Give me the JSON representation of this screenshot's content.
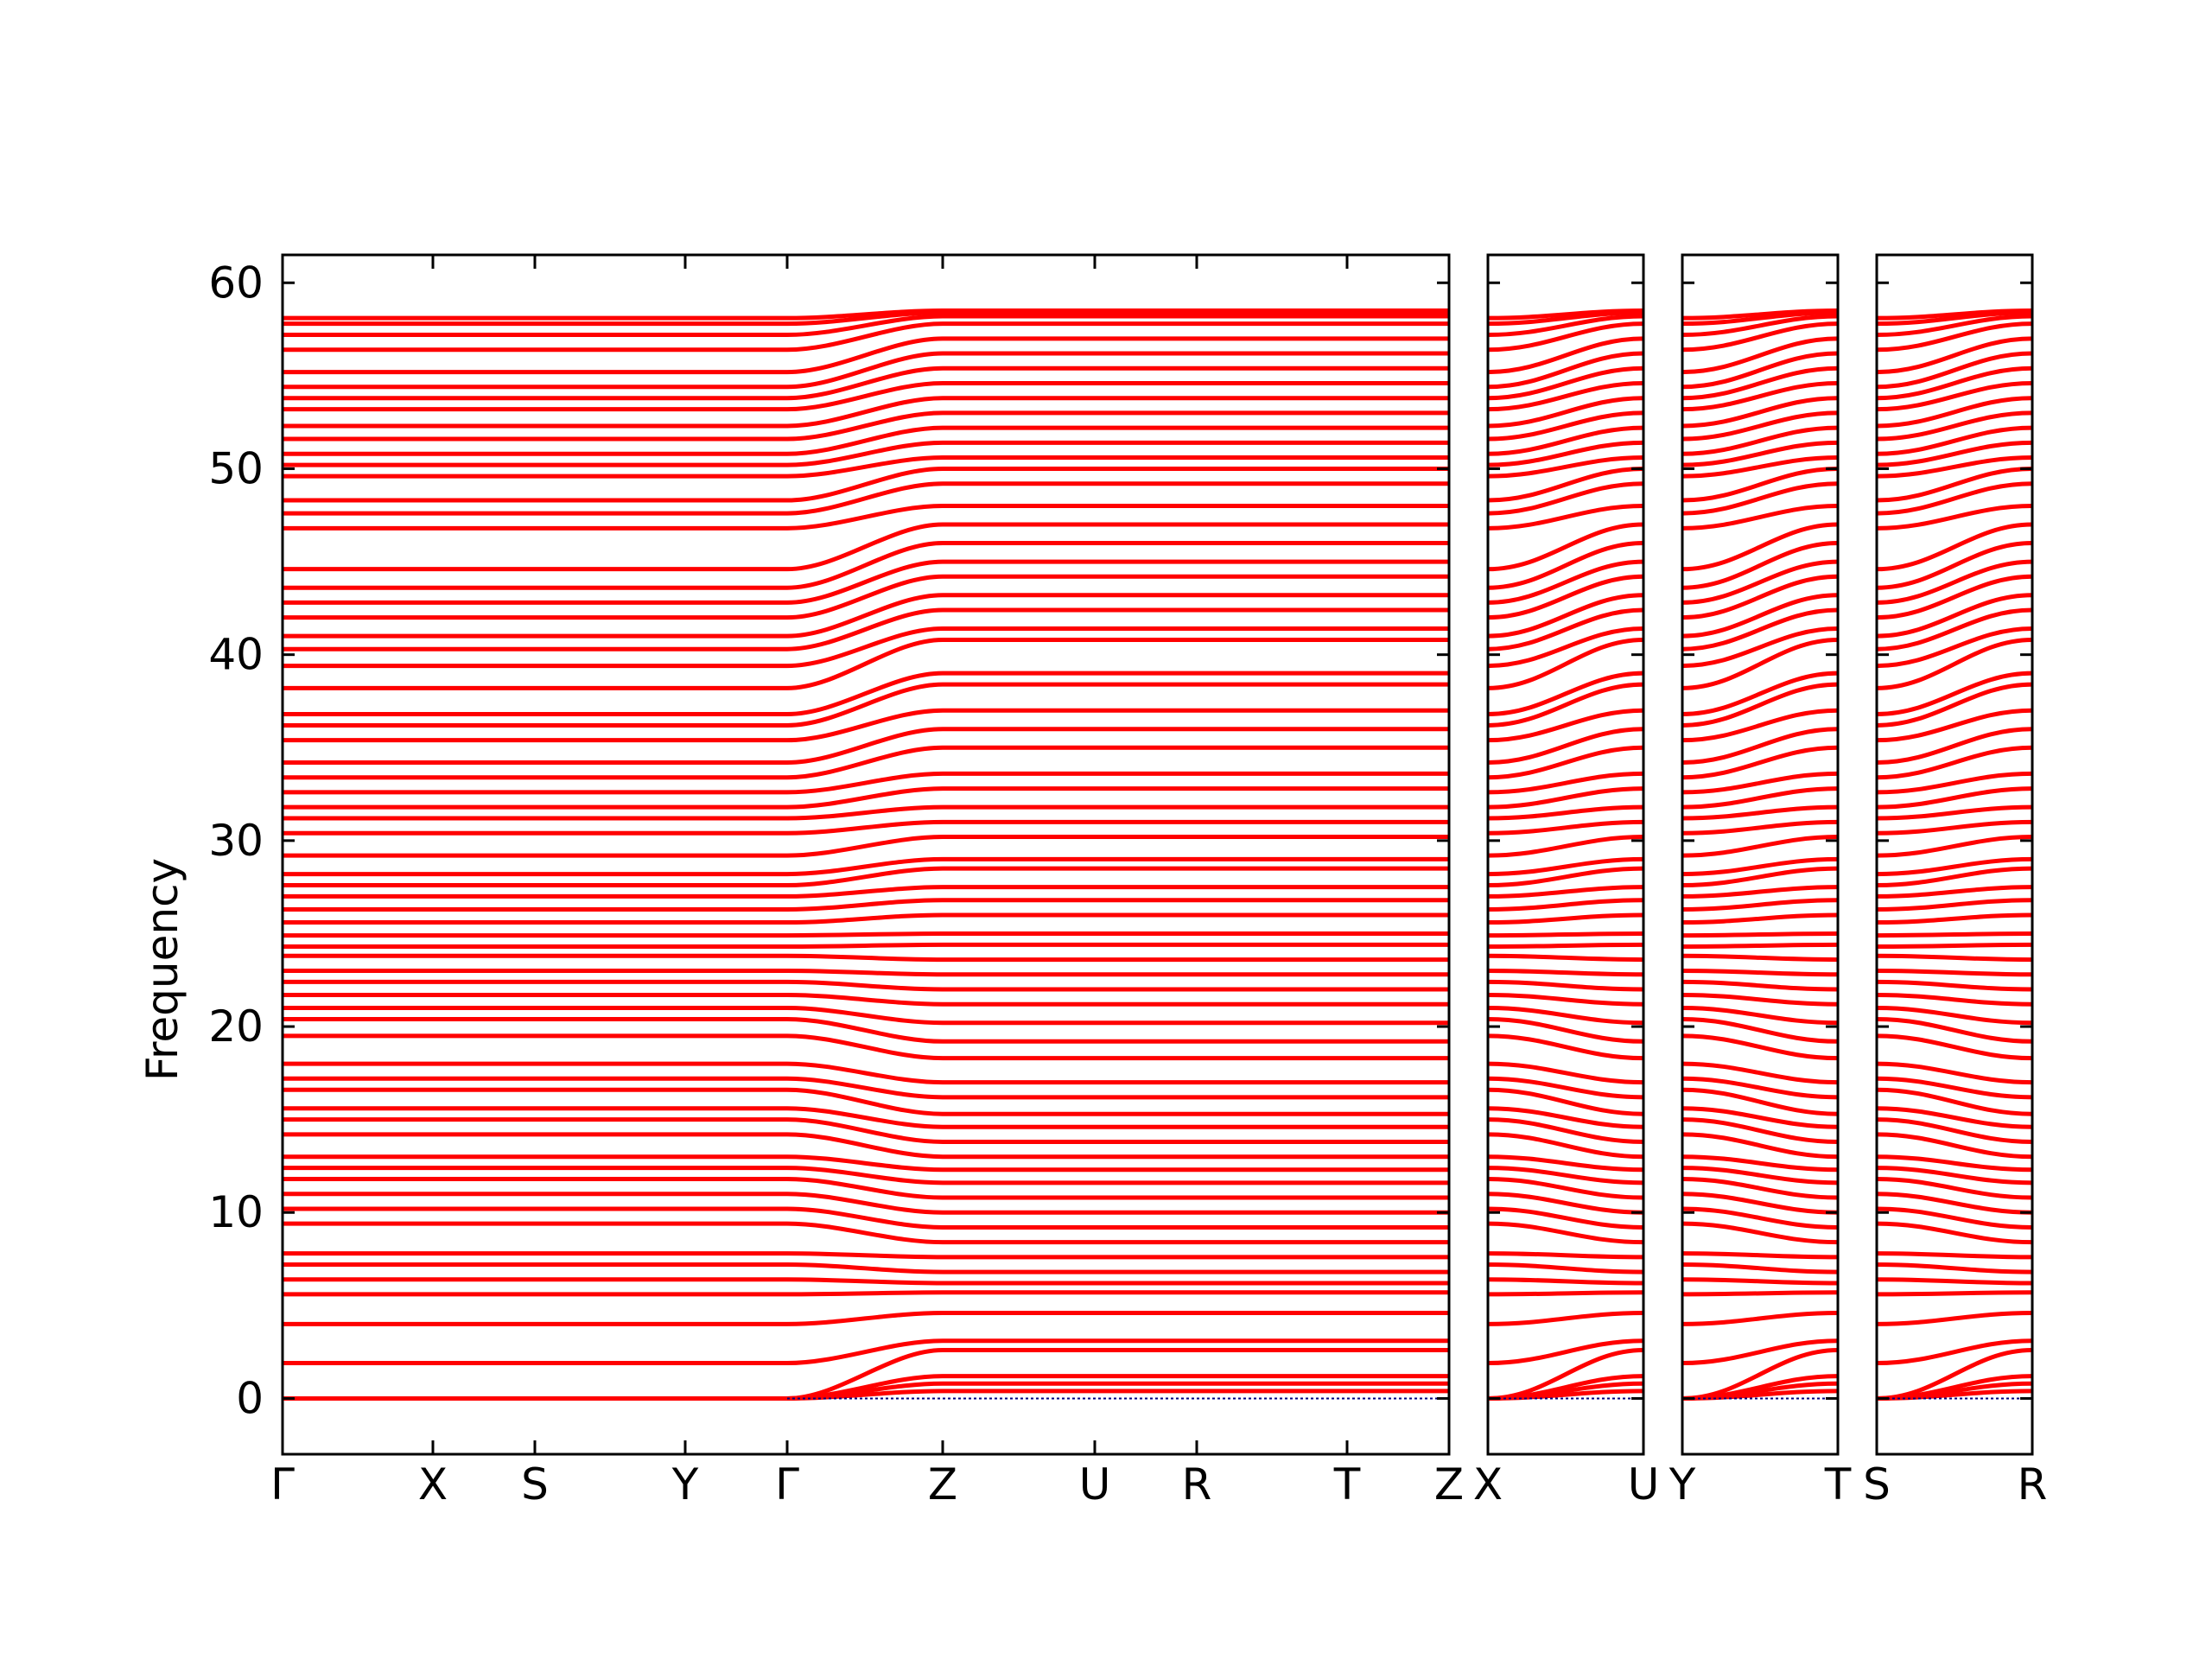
{
  "chart_data": {
    "type": "line",
    "title": "",
    "ylabel": "Frequency",
    "ylim": [
      -3,
      61.5
    ],
    "yticks": [
      0,
      10,
      20,
      30,
      40,
      50,
      60
    ],
    "ytick_labels": [
      "0",
      "10",
      "20",
      "30",
      "40",
      "50",
      "60"
    ],
    "colors": {
      "bands": "#ff0000",
      "zero_line": "#000080",
      "axes": "#000000"
    },
    "band_frequencies_at_gamma": [
      0,
      0,
      0,
      0,
      1.9,
      4.0,
      5.6,
      6.4,
      7.2,
      7.8,
      9.4,
      10.2,
      11.0,
      11.8,
      12.4,
      13.0,
      14.2,
      15.0,
      15.6,
      16.6,
      17.2,
      18.0,
      19.5,
      20.4,
      21.0,
      21.7,
      22.4,
      23.0,
      23.8,
      24.3,
      24.9,
      25.6,
      26.3,
      27.0,
      27.6,
      28.2,
      29.2,
      30.4,
      31.2,
      31.8,
      32.6,
      33.4,
      34.2,
      35.4,
      36.2,
      36.8,
      38.2,
      39.4,
      40.3,
      41.0,
      42.0,
      42.8,
      43.6,
      44.6,
      46.8,
      47.6,
      48.3,
      49.6,
      50.2,
      50.8,
      51.6,
      52.3,
      53.2,
      53.8,
      54.4,
      55.2,
      56.4,
      57.2,
      57.8,
      58.1
    ],
    "band_frequencies_at_z": [
      0.4,
      0.8,
      1.2,
      2.6,
      3.1,
      4.6,
      5.7,
      6.2,
      6.8,
      7.6,
      8.4,
      9.2,
      10.0,
      10.8,
      11.6,
      12.3,
      13.0,
      13.8,
      14.6,
      15.3,
      16.2,
      17.0,
      18.3,
      19.2,
      20.2,
      21.2,
      22.0,
      22.8,
      23.6,
      24.4,
      25.0,
      26.0,
      26.8,
      27.5,
      28.5,
      29.0,
      30.2,
      31.0,
      31.8,
      32.8,
      33.6,
      35.0,
      36.0,
      37.0,
      38.4,
      39.0,
      40.8,
      41.4,
      42.4,
      43.2,
      44.2,
      45.0,
      46.0,
      47.0,
      48.0,
      49.2,
      50.0,
      50.6,
      51.4,
      52.2,
      53.0,
      53.8,
      54.6,
      55.4,
      56.2,
      57.0,
      57.8,
      58.2,
      58.4,
      58.5
    ],
    "panels": [
      {
        "x_labels": [
          "Γ",
          "X",
          "S",
          "Y",
          "Γ",
          "Z",
          "U",
          "R",
          "T",
          "Z"
        ]
      },
      {
        "x_labels": [
          "X",
          "U"
        ]
      },
      {
        "x_labels": [
          "Y",
          "T"
        ]
      },
      {
        "x_labels": [
          "S",
          "R"
        ]
      }
    ]
  }
}
